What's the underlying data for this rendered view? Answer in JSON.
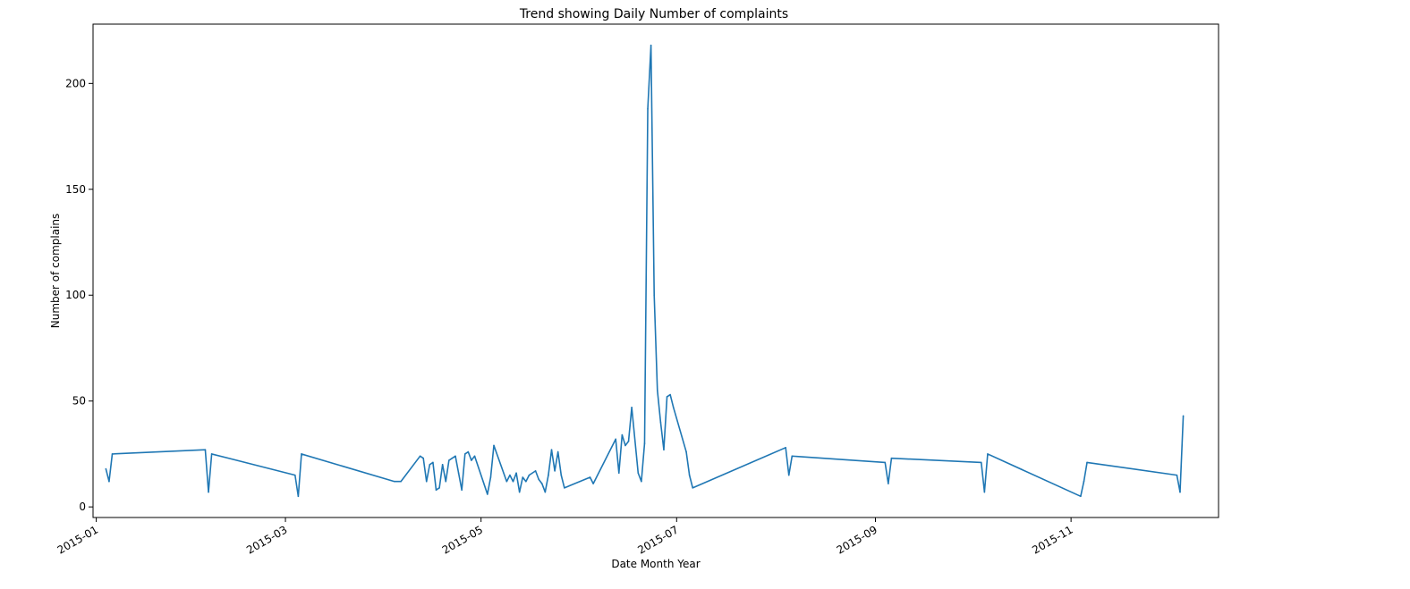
{
  "chart_data": {
    "type": "line",
    "title": "Trend showing Daily Number of complaints",
    "xlabel": "Date Month Year",
    "ylabel": "Number of complains",
    "ylim": [
      -5,
      228
    ],
    "xlim": [
      "2014-12-31",
      "2015-12-17"
    ],
    "grid": false,
    "line_color": "#1f77b4",
    "x_ticks": [
      "2015-01",
      "2015-03",
      "2015-05",
      "2015-07",
      "2015-09",
      "2015-11"
    ],
    "y_ticks": [
      0,
      50,
      100,
      150,
      200
    ],
    "series": [
      {
        "x": [
          "2015-01-04",
          "2015-01-05",
          "2015-01-06",
          "2015-02-04",
          "2015-02-05",
          "2015-02-06",
          "2015-03-04",
          "2015-03-05",
          "2015-03-06",
          "2015-04-04",
          "2015-04-06",
          "2015-04-12",
          "2015-04-13",
          "2015-04-14",
          "2015-04-15",
          "2015-04-16",
          "2015-04-17",
          "2015-04-18",
          "2015-04-19",
          "2015-04-20",
          "2015-04-21",
          "2015-04-22",
          "2015-04-23",
          "2015-04-24",
          "2015-04-25",
          "2015-04-26",
          "2015-04-27",
          "2015-04-28",
          "2015-04-29",
          "2015-05-03",
          "2015-05-04",
          "2015-05-05",
          "2015-05-09",
          "2015-05-10",
          "2015-05-11",
          "2015-05-12",
          "2015-05-13",
          "2015-05-14",
          "2015-05-15",
          "2015-05-16",
          "2015-05-18",
          "2015-05-19",
          "2015-05-20",
          "2015-05-21",
          "2015-05-22",
          "2015-05-23",
          "2015-05-24",
          "2015-05-25",
          "2015-05-26",
          "2015-05-27",
          "2015-06-04",
          "2015-06-05",
          "2015-06-12",
          "2015-06-13",
          "2015-06-14",
          "2015-06-15",
          "2015-06-16",
          "2015-06-17",
          "2015-06-19",
          "2015-06-20",
          "2015-06-21",
          "2015-06-22",
          "2015-06-23",
          "2015-06-24",
          "2015-06-25",
          "2015-06-26",
          "2015-06-27",
          "2015-06-28",
          "2015-06-29",
          "2015-06-30",
          "2015-07-04",
          "2015-07-05",
          "2015-07-06",
          "2015-08-04",
          "2015-08-05",
          "2015-08-06",
          "2015-09-04",
          "2015-09-05",
          "2015-09-06",
          "2015-10-04",
          "2015-10-05",
          "2015-10-06",
          "2015-11-04",
          "2015-11-05",
          "2015-11-06",
          "2015-12-04",
          "2015-12-05",
          "2015-12-06"
        ],
        "values": [
          18,
          12,
          25,
          27,
          7,
          25,
          15,
          5,
          25,
          12,
          12,
          24,
          23,
          12,
          20,
          21,
          8,
          9,
          20,
          12,
          22,
          23,
          24,
          16,
          8,
          25,
          26,
          22,
          24,
          6,
          14,
          29,
          12,
          15,
          12,
          16,
          7,
          14,
          12,
          15,
          17,
          13,
          11,
          7,
          15,
          27,
          17,
          26,
          15,
          9,
          14,
          11,
          32,
          16,
          34,
          29,
          31,
          47,
          16,
          12,
          30,
          188,
          218,
          100,
          55,
          40,
          27,
          52,
          53,
          47,
          26,
          15,
          9,
          28,
          15,
          24,
          21,
          11,
          23,
          21,
          7,
          25,
          5,
          12,
          21,
          15,
          7,
          43
        ]
      }
    ]
  }
}
